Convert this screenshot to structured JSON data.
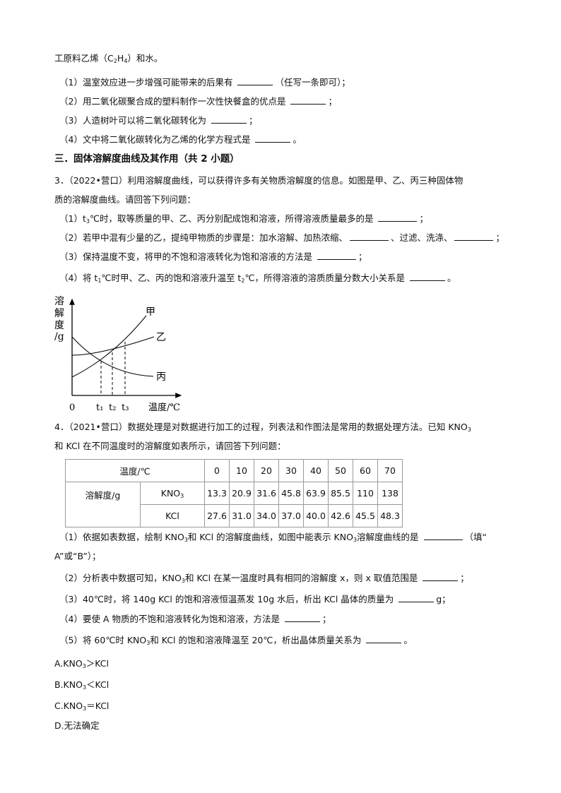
{
  "top_lines": [
    {
      "cls": "line",
      "segs": [
        {
          "t": "工原料乙烯（C"
        },
        {
          "t": "2",
          "sub": true
        },
        {
          "t": "H"
        },
        {
          "t": "4",
          "sub": true
        },
        {
          "t": "）和水。"
        }
      ]
    },
    {
      "cls": "line ind",
      "segs": [
        {
          "t": "（1）温室效应进一步增强可能带来的后果有 "
        },
        {
          "b": 50
        },
        {
          "t": "（任写一条即可）；"
        }
      ]
    },
    {
      "cls": "line ind",
      "segs": [
        {
          "t": "（2）用二氧化碳聚合成的塑料制作一次性快餐盒的优点是 "
        },
        {
          "b": 50
        },
        {
          "t": "；"
        }
      ]
    },
    {
      "cls": "line ind",
      "segs": [
        {
          "t": "（3）人造树叶可以将二氧化碳转化为 "
        },
        {
          "b": 50
        },
        {
          "t": "；"
        }
      ]
    },
    {
      "cls": "line ind",
      "segs": [
        {
          "t": "（4）文中将二氧化碳转化为乙烯的化学方程式是 "
        },
        {
          "b": 50
        },
        {
          "t": "。"
        }
      ]
    },
    {
      "cls": "line h",
      "segs": [
        {
          "t": "三．固体溶解度曲线及其作用（共 2 小题）"
        }
      ]
    },
    {
      "cls": "line",
      "segs": [
        {
          "t": "3．（2022•营口）利用溶解度曲线，可以获得许多有关物质溶解度的信息。如图是甲、乙、丙三种固体物"
        }
      ]
    },
    {
      "cls": "line",
      "segs": [
        {
          "t": "质的溶解度曲线。请回答下列问题："
        }
      ]
    },
    {
      "cls": "line ind",
      "segs": [
        {
          "t": "（1）t"
        },
        {
          "t": "3",
          "sub": true
        },
        {
          "t": "℃时，取等质量的甲、乙、丙分别配成饱和溶液，所得溶液质量最多的是 "
        },
        {
          "b": 55
        },
        {
          "t": "；"
        }
      ]
    },
    {
      "cls": "line ind",
      "segs": [
        {
          "t": "（2）若甲中混有少量的乙，提纯甲物质的步骤是：加水溶解、加热浓缩、"
        },
        {
          "b": 55
        },
        {
          "t": "、过滤、洗涤、"
        },
        {
          "b": 55
        },
        {
          "t": "；"
        }
      ]
    },
    {
      "cls": "line ind",
      "segs": [
        {
          "t": "（3）保持温度不变，将甲的不饱和溶液转化为饱和溶液的方法是 "
        },
        {
          "b": 55
        },
        {
          "t": "；"
        }
      ]
    },
    {
      "cls": "line ind",
      "segs": [
        {
          "t": "（4）将 t"
        },
        {
          "t": "1",
          "sub": true
        },
        {
          "t": "℃时甲、乙、丙的饱和溶液升温至 t"
        },
        {
          "t": "2",
          "sub": true
        },
        {
          "t": "℃，所得溶液的溶质质量分数大小关系是 "
        },
        {
          "b": 50
        },
        {
          "t": "。"
        }
      ]
    }
  ],
  "figure": {
    "y_label": [
      "溶",
      "解",
      "度",
      "/g"
    ],
    "origin": "0",
    "t1": "t₁",
    "t2": "t₂",
    "t3": "t₃",
    "x_label": "温度/℃",
    "curves": [
      "甲",
      "乙",
      "丙"
    ]
  },
  "q4_lines": [
    {
      "cls": "line",
      "segs": [
        {
          "t": "4．（2021•营口）数据处理是对数据进行加工的过程，列表法和作图法是常用的数据处理方法。已知 KNO"
        },
        {
          "t": "3",
          "sub": true
        }
      ]
    },
    {
      "cls": "line",
      "segs": [
        {
          "t": "和 KCl 在不同温度时的溶解度如表所示，请回答下列问题："
        }
      ]
    }
  ],
  "table": {
    "header_label": "温度/℃",
    "temps": [
      "0",
      "10",
      "20",
      "30",
      "40",
      "50",
      "60",
      "70"
    ],
    "row_label": "溶解度/g",
    "rows": [
      {
        "name": "KNO",
        "sub": "3",
        "values": [
          "13.3",
          "20.9",
          "31.6",
          "45.8",
          "63.9",
          "85.5",
          "110",
          "138"
        ]
      },
      {
        "name": "KCl",
        "sub": "",
        "values": [
          "27.6",
          "31.0",
          "34.0",
          "37.0",
          "40.0",
          "42.6",
          "45.5",
          "48.3"
        ]
      }
    ]
  },
  "bottom_lines": [
    {
      "cls": "line ind",
      "segs": [
        {
          "t": "（1）依据如表数据，绘制 KNO"
        },
        {
          "t": "3",
          "sub": true
        },
        {
          "t": "和 KCl 的溶解度曲线，如图中能表示 KNO"
        },
        {
          "t": "3",
          "sub": true
        },
        {
          "t": "溶解度曲线的是 "
        },
        {
          "b": 55
        },
        {
          "t": "（填“"
        }
      ]
    },
    {
      "cls": "line",
      "segs": [
        {
          "t": "A”或“B”）；"
        }
      ]
    },
    {
      "cls": "line ind",
      "segs": [
        {
          "t": "（2）分析表中数据可知，KNO"
        },
        {
          "t": "3",
          "sub": true
        },
        {
          "t": "和 KCl 在某一温度时具有相同的溶解度 x，则 x 取值范围是 "
        },
        {
          "b": 50
        },
        {
          "t": "；"
        }
      ]
    },
    {
      "cls": "line ind",
      "segs": [
        {
          "t": "（3）40℃时，将 140g KCl 的饱和溶液恒温蒸发 10g 水后，析出 KCl 晶体的质量为 "
        },
        {
          "b": 50
        },
        {
          "t": "g；"
        }
      ]
    },
    {
      "cls": "line ind",
      "segs": [
        {
          "t": "（4）要使 A 物质的不饱和溶液转化为饱和溶液，方法是 "
        },
        {
          "b": 50
        },
        {
          "t": "；"
        }
      ]
    },
    {
      "cls": "line ind",
      "segs": [
        {
          "t": "（5）将 60℃时 KNO"
        },
        {
          "t": "3",
          "sub": true
        },
        {
          "t": "和 KCl 的饱和溶液降温至 20℃，析出晶体质量关系为 "
        },
        {
          "b": 50
        },
        {
          "t": "。"
        }
      ]
    },
    {
      "cls": "line",
      "segs": [
        {
          "t": "A.KNO"
        },
        {
          "t": "3",
          "sub": true
        },
        {
          "t": "＞KCl"
        }
      ]
    },
    {
      "cls": "line",
      "segs": [
        {
          "t": "B.KNO"
        },
        {
          "t": "3",
          "sub": true
        },
        {
          "t": "＜KCl"
        }
      ]
    },
    {
      "cls": "line",
      "segs": [
        {
          "t": "C.KNO"
        },
        {
          "t": "3",
          "sub": true
        },
        {
          "t": "＝KCl"
        }
      ]
    },
    {
      "cls": "line",
      "segs": [
        {
          "t": "D.无法确定"
        }
      ]
    }
  ]
}
